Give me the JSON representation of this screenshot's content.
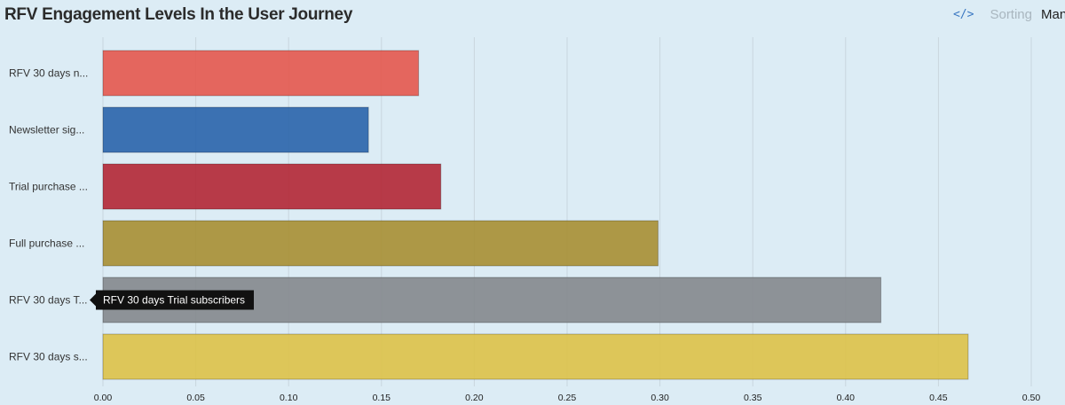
{
  "header": {
    "title": "RFV Engagement Levels In the User Journey",
    "code_icon": "code-icon",
    "sorting_label": "Sorting",
    "sorting_value": "Manual"
  },
  "tooltip": {
    "text": "RFV 30 days Trial subscribers"
  },
  "chart_data": {
    "type": "bar",
    "orientation": "horizontal",
    "title": "RFV Engagement Levels In the User Journey",
    "categories": [
      "RFV 30 days n...",
      "Newsletter sig...",
      "Trial purchase ...",
      "Full purchase ...",
      "RFV 30 days T...",
      "RFV 30 days s..."
    ],
    "values": [
      0.17,
      0.143,
      0.182,
      0.299,
      0.419,
      0.466
    ],
    "colors": [
      "#e45a50",
      "#2c66ab",
      "#b32a38",
      "#a89036",
      "#858a8e",
      "#dcc24b"
    ],
    "xlim": [
      0,
      0.5
    ],
    "xticks": [
      "0.00",
      "0.05",
      "0.10",
      "0.15",
      "0.20",
      "0.25",
      "0.30",
      "0.35",
      "0.40",
      "0.45",
      "0.50"
    ],
    "xtick_values": [
      0,
      0.05,
      0.1,
      0.15,
      0.2,
      0.25,
      0.3,
      0.35,
      0.4,
      0.45,
      0.5
    ],
    "grid": true,
    "xlabel": "",
    "ylabel": ""
  }
}
